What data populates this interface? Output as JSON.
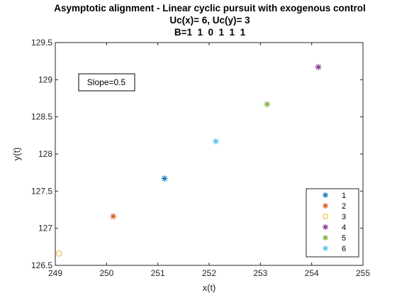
{
  "chart_data": {
    "type": "scatter",
    "title_lines": [
      "Asymptotic alignment - Linear cyclic pursuit with exogenous control",
      "Uc(x)= 6, Uc(y)= 3",
      "B=1  1  0  1  1  1"
    ],
    "xlabel": "x(t)",
    "ylabel": "y(t)",
    "xlim": [
      249,
      255
    ],
    "ylim": [
      126.5,
      129.5
    ],
    "xticks": [
      "249",
      "250",
      "251",
      "252",
      "253",
      "254",
      "255"
    ],
    "yticks": [
      "126.5",
      "127",
      "127.5",
      "128",
      "128.5",
      "129",
      "129.5"
    ],
    "grid": false,
    "legend_position": "bottom-right",
    "annotation": "Slope=0.5",
    "series": [
      {
        "name": "1",
        "marker": "star",
        "color": "#0072BD",
        "x": [
          251.13
        ],
        "y": [
          127.67
        ]
      },
      {
        "name": "2",
        "marker": "star",
        "color": "#D95319",
        "x": [
          250.13
        ],
        "y": [
          127.16
        ]
      },
      {
        "name": "3",
        "marker": "circle",
        "color": "#EDB120",
        "x": [
          249.07
        ],
        "y": [
          126.66
        ]
      },
      {
        "name": "4",
        "marker": "star",
        "color": "#7E2F8E",
        "x": [
          254.13
        ],
        "y": [
          129.17
        ]
      },
      {
        "name": "5",
        "marker": "star",
        "color": "#77AC30",
        "x": [
          253.13
        ],
        "y": [
          128.67
        ]
      },
      {
        "name": "6",
        "marker": "star",
        "color": "#4DBEEE",
        "x": [
          252.13
        ],
        "y": [
          128.17
        ]
      }
    ]
  }
}
